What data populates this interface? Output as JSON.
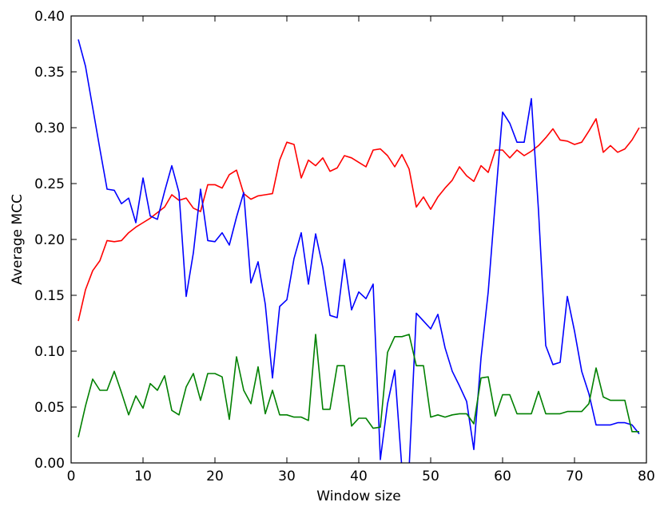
{
  "chart_data": {
    "type": "line",
    "xlabel": "Window size",
    "ylabel": "Average MCC",
    "xlim": [
      0,
      80
    ],
    "ylim": [
      0,
      0.4
    ],
    "xticks": [
      0,
      10,
      20,
      30,
      40,
      50,
      60,
      70,
      80
    ],
    "yticks": [
      "0.00",
      "0.05",
      "0.10",
      "0.15",
      "0.20",
      "0.25",
      "0.30",
      "0.35",
      "0.40"
    ],
    "grid": false,
    "series": [
      {
        "color": "#ff0000",
        "x": [
          1,
          2,
          3,
          4,
          5,
          6,
          7,
          8,
          9,
          10,
          11,
          12,
          13,
          14,
          15,
          16,
          17,
          18,
          19,
          20,
          21,
          22,
          23,
          24,
          25,
          26,
          27,
          28,
          29,
          30,
          31,
          32,
          33,
          34,
          35,
          36,
          37,
          38,
          39,
          40,
          41,
          42,
          43,
          44,
          45,
          46,
          47,
          48,
          49,
          50,
          51,
          52,
          53,
          54,
          55,
          56,
          57,
          58,
          59,
          60,
          61,
          62,
          63,
          64,
          65,
          66,
          67,
          68,
          69,
          70,
          71,
          72,
          73,
          74,
          75,
          76,
          77,
          78,
          79
        ],
        "values": [
          0.127,
          0.155,
          0.172,
          0.181,
          0.199,
          0.198,
          0.199,
          0.206,
          0.211,
          0.215,
          0.219,
          0.224,
          0.229,
          0.24,
          0.235,
          0.237,
          0.228,
          0.225,
          0.249,
          0.249,
          0.246,
          0.258,
          0.262,
          0.241,
          0.236,
          0.239,
          0.24,
          0.241,
          0.271,
          0.287,
          0.285,
          0.255,
          0.271,
          0.266,
          0.273,
          0.261,
          0.264,
          0.275,
          0.273,
          0.269,
          0.265,
          0.28,
          0.281,
          0.275,
          0.265,
          0.276,
          0.263,
          0.229,
          0.238,
          0.227,
          0.238,
          0.246,
          0.253,
          0.265,
          0.257,
          0.252,
          0.266,
          0.26,
          0.28,
          0.28,
          0.273,
          0.28,
          0.275,
          0.279,
          0.284,
          0.291,
          0.299,
          0.289,
          0.288,
          0.285,
          0.287,
          0.297,
          0.308,
          0.278,
          0.284,
          0.278,
          0.281,
          0.289,
          0.3
        ]
      },
      {
        "color": "#0000ff",
        "x": [
          1,
          2,
          3,
          4,
          5,
          6,
          7,
          8,
          9,
          10,
          11,
          12,
          13,
          14,
          15,
          16,
          17,
          18,
          19,
          20,
          21,
          22,
          23,
          24,
          25,
          26,
          27,
          28,
          29,
          30,
          31,
          32,
          33,
          34,
          35,
          36,
          37,
          38,
          39,
          40,
          41,
          42,
          43,
          44,
          45,
          46,
          47,
          48,
          49,
          50,
          51,
          52,
          53,
          54,
          55,
          56,
          57,
          58,
          59,
          60,
          61,
          62,
          63,
          64,
          65,
          66,
          67,
          68,
          69,
          70,
          71,
          72,
          73,
          74,
          75,
          76,
          77,
          78,
          79
        ],
        "values": [
          0.379,
          0.355,
          0.318,
          0.281,
          0.245,
          0.244,
          0.232,
          0.237,
          0.215,
          0.255,
          0.221,
          0.218,
          0.243,
          0.266,
          0.242,
          0.149,
          0.188,
          0.245,
          0.199,
          0.198,
          0.206,
          0.195,
          0.22,
          0.242,
          0.161,
          0.18,
          0.142,
          0.076,
          0.14,
          0.146,
          0.183,
          0.206,
          0.16,
          0.205,
          0.175,
          0.132,
          0.13,
          0.182,
          0.137,
          0.153,
          0.147,
          0.16,
          0.003,
          0.053,
          0.083,
          -0.005,
          -0.005,
          0.134,
          0.127,
          0.12,
          0.133,
          0.103,
          0.082,
          0.069,
          0.055,
          0.012,
          0.094,
          0.153,
          0.235,
          0.314,
          0.304,
          0.287,
          0.287,
          0.326,
          0.225,
          0.105,
          0.088,
          0.09,
          0.149,
          0.118,
          0.082,
          0.062,
          0.034,
          0.034,
          0.034,
          0.036,
          0.036,
          0.034,
          0.026
        ]
      },
      {
        "color": "#008000",
        "x": [
          1,
          2,
          3,
          4,
          5,
          6,
          7,
          8,
          9,
          10,
          11,
          12,
          13,
          14,
          15,
          16,
          17,
          18,
          19,
          20,
          21,
          22,
          23,
          24,
          25,
          26,
          27,
          28,
          29,
          30,
          31,
          32,
          33,
          34,
          35,
          36,
          37,
          38,
          39,
          40,
          41,
          42,
          43,
          44,
          45,
          46,
          47,
          48,
          49,
          50,
          51,
          52,
          53,
          54,
          55,
          56,
          57,
          58,
          59,
          60,
          61,
          62,
          63,
          64,
          65,
          66,
          67,
          68,
          69,
          70,
          71,
          72,
          73,
          74,
          75,
          76,
          77,
          78,
          79
        ],
        "values": [
          0.023,
          0.051,
          0.075,
          0.065,
          0.065,
          0.082,
          0.063,
          0.043,
          0.06,
          0.049,
          0.071,
          0.065,
          0.078,
          0.047,
          0.043,
          0.068,
          0.08,
          0.056,
          0.08,
          0.08,
          0.077,
          0.039,
          0.095,
          0.065,
          0.053,
          0.086,
          0.044,
          0.065,
          0.043,
          0.043,
          0.041,
          0.041,
          0.038,
          0.115,
          0.048,
          0.048,
          0.087,
          0.087,
          0.033,
          0.04,
          0.04,
          0.031,
          0.032,
          0.099,
          0.113,
          0.113,
          0.115,
          0.087,
          0.087,
          0.041,
          0.043,
          0.041,
          0.043,
          0.044,
          0.044,
          0.035,
          0.076,
          0.077,
          0.042,
          0.061,
          0.061,
          0.044,
          0.044,
          0.044,
          0.064,
          0.044,
          0.044,
          0.044,
          0.046,
          0.046,
          0.046,
          0.053,
          0.085,
          0.059,
          0.056,
          0.056,
          0.056,
          0.028,
          0.028
        ]
      }
    ]
  }
}
